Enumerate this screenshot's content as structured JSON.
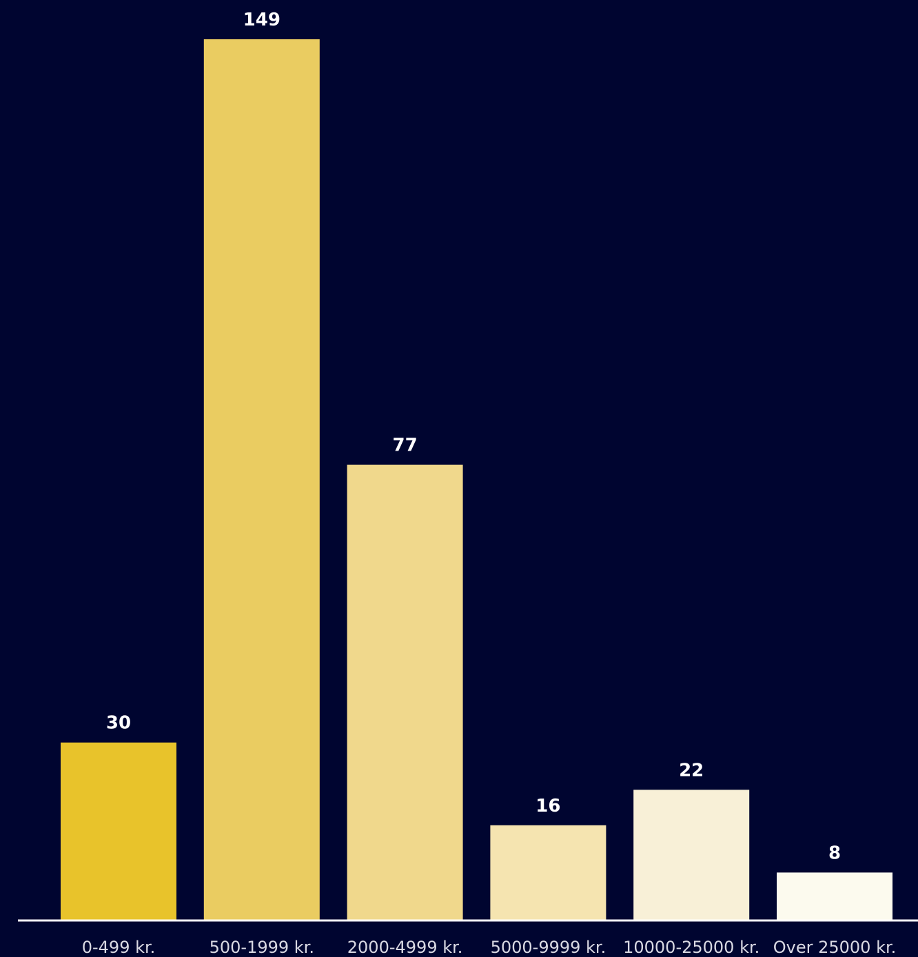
{
  "chart_data": {
    "type": "bar",
    "categories": [
      "0-499 kr.",
      "500-1999 kr.",
      "2000-4999 kr.",
      "5000-9999 kr.",
      "10000-25000 kr.",
      "Over 25000 kr."
    ],
    "values": [
      30,
      149,
      77,
      16,
      22,
      8
    ],
    "data_labels": [
      "30",
      "149",
      "77",
      "16",
      "22",
      "8"
    ],
    "bar_colors": [
      "#e8c32b",
      "#eacc61",
      "#f0d88c",
      "#f5e4b0",
      "#f8f0d7",
      "#fcfaee"
    ],
    "title": "",
    "xlabel": "",
    "ylabel": "",
    "ylim": [
      0,
      149
    ],
    "grid": false,
    "legend": "none",
    "background": "#000530",
    "axis_color": "#ffffff"
  }
}
